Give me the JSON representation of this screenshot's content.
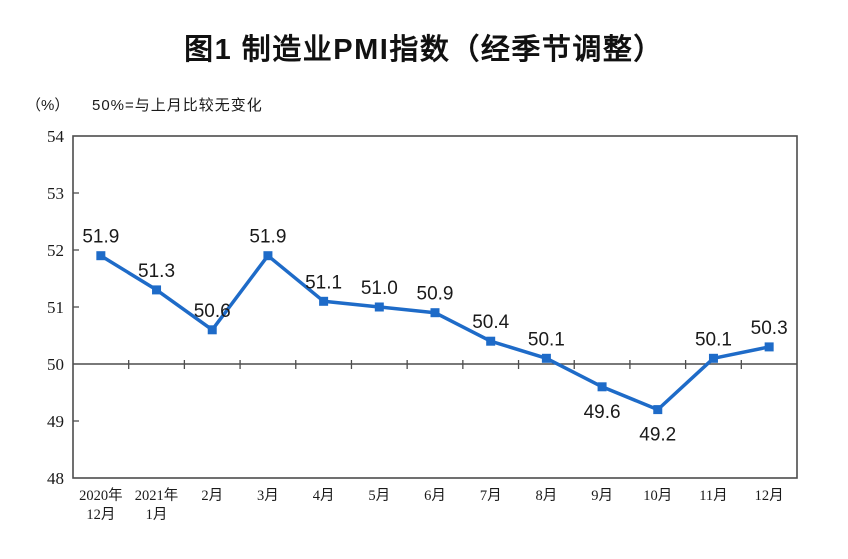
{
  "chart_data": {
    "type": "line",
    "title": "图1 制造业PMI指数（经季节调整）",
    "unit_label": "（%）",
    "annotation": "50%=与上月比较无变化",
    "categories": [
      "2020年12月",
      "2021年1月",
      "2月",
      "3月",
      "4月",
      "5月",
      "6月",
      "7月",
      "8月",
      "9月",
      "10月",
      "11月",
      "12月"
    ],
    "x_tick_lines": [
      [
        "2020年",
        "12月"
      ],
      [
        "2021年",
        "1月"
      ],
      [
        "2月"
      ],
      [
        "3月"
      ],
      [
        "4月"
      ],
      [
        "5月"
      ],
      [
        "6月"
      ],
      [
        "7月"
      ],
      [
        "8月"
      ],
      [
        "9月"
      ],
      [
        "10月"
      ],
      [
        "11月"
      ],
      [
        "12月"
      ]
    ],
    "series": [
      {
        "name": "制造业PMI",
        "values": [
          51.9,
          51.3,
          50.6,
          51.9,
          51.1,
          51.0,
          50.9,
          50.4,
          50.1,
          49.6,
          49.2,
          50.1,
          50.3
        ]
      }
    ],
    "data_labels": [
      "51.9",
      "51.3",
      "50.6",
      "51.9",
      "51.1",
      "51.0",
      "50.9",
      "50.4",
      "50.1",
      "49.6",
      "49.2",
      "50.1",
      "50.3"
    ],
    "ylim": [
      48,
      54
    ],
    "yticks": [
      48,
      49,
      50,
      51,
      52,
      53,
      54
    ],
    "reference_line": 50,
    "grid": false,
    "legend_position": "none",
    "colors": {
      "line": "#1E6BC8",
      "axis": "#4D4D4D",
      "label_text": "#1A1A1A",
      "background": "#FFFFFF"
    }
  }
}
